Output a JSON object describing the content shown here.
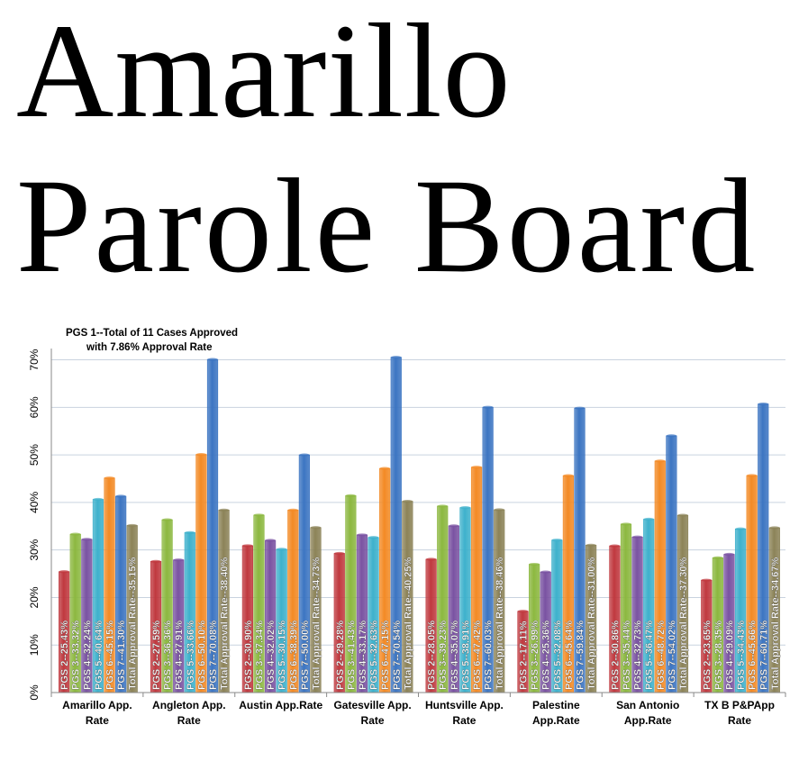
{
  "title_lines": [
    "Amarillo",
    "Parole Board"
  ],
  "chart_data": {
    "type": "bar",
    "annotation": [
      "PGS 1--Total of 11 Cases Approved",
      "with 7.86% Approval Rate"
    ],
    "categories": [
      [
        "Amarillo App.",
        "Rate"
      ],
      [
        "Angleton App.",
        "Rate"
      ],
      [
        "Austin App.Rate"
      ],
      [
        "Gatesville App.",
        "Rate"
      ],
      [
        "Huntsville App.",
        "Rate"
      ],
      [
        "Palestine",
        "App.Rate"
      ],
      [
        "San Antonio",
        "App.Rate"
      ],
      [
        "TX B P&PApp",
        "Rate"
      ]
    ],
    "yticks": [
      "0%",
      "10%",
      "20%",
      "30%",
      "40%",
      "50%",
      "60%",
      "70%"
    ],
    "ylim": [
      0,
      72
    ],
    "grid": true,
    "series_colors": [
      "#c0393f",
      "#8cb840",
      "#7a53a2",
      "#3eb1cc",
      "#f38a25",
      "#3c75c2",
      "#8c8358"
    ],
    "values": [
      [
        25.43,
        33.32,
        32.24,
        40.64,
        45.15,
        41.3,
        35.15
      ],
      [
        27.59,
        36.36,
        27.91,
        33.66,
        50.1,
        70.08,
        38.4
      ],
      [
        30.9,
        37.34,
        32.02,
        30.15,
        38.39,
        50.0,
        34.73
      ],
      [
        29.28,
        41.43,
        33.17,
        32.63,
        47.15,
        70.54,
        40.25
      ],
      [
        28.05,
        39.23,
        35.07,
        38.91,
        47.42,
        60.03,
        38.46
      ],
      [
        17.11,
        26.99,
        25.36,
        32.08,
        45.64,
        59.84,
        31.0
      ],
      [
        30.86,
        35.44,
        32.73,
        36.47,
        48.72,
        54.02,
        37.3
      ],
      [
        23.65,
        28.35,
        29.09,
        34.43,
        45.66,
        60.71,
        34.67
      ]
    ],
    "bar_labels": [
      [
        "PGS 2--25.43%",
        "PGS 3--33.32%",
        "PGS 4--32.24%",
        "PGS 5--40.64%",
        "PGS 6--45.15%",
        "PGS 7--41.30%",
        "Total Approval Rate--35.15%"
      ],
      [
        "PGS 2--27.59%",
        "PGS 3--36.36%",
        "PGS 4--27.91%",
        "PGS 5--33.66%",
        "PGS 6--50.10%",
        "PGS 7--70.08%",
        "Total Approval Rate--38.40%"
      ],
      [
        "PGS 2--30.90%",
        "PGS 3--37.34%",
        "PGS 4--32.02%",
        "PGS 5--30.15%",
        "PGS 6--38.39%",
        "PGS 7--50.00%",
        "Total Approval Rate--34.73%"
      ],
      [
        "PGS 2--29.28%",
        "PGS 3--41.43%",
        "PGS 4--33.17%",
        "PGS 5--32.63%",
        "PGS 6--47.15%",
        "PGS 7--70.54%",
        "Total Approval Rate--40.25%"
      ],
      [
        "PGS 2--28.05%",
        "PGS 3--39.23%",
        "PGS 4--35.07%",
        "PGS 5--38.91%",
        "PGS 6--47.42%",
        "PGS 7--60.03%",
        "Total Approval Rate--38.46%"
      ],
      [
        "PGS 2--17.11%",
        "PGS 3--26.99%",
        "PGS 4--25.36%",
        "PGS 5--32.08%",
        "PGS 6--45.64%",
        "PGS 7--59.84%",
        "Total Approval Rate--31.00%"
      ],
      [
        "PGS 2--30.86%",
        "PGS 3--35.44%",
        "PGS 4--32.73%",
        "PGS 5--36.47%",
        "PGS 6--48.72%",
        "PGS 7--54.02%",
        "Total Approval Rate--37.30%"
      ],
      [
        "PGS 2--23.65%",
        "PGS 3--28.35%",
        "PGS 4--29.09%",
        "PGS 5--34.43%",
        "PGS 6--45.66%",
        "PGS 7--60.71%",
        "Total Approval Rate--34.67%"
      ]
    ]
  }
}
